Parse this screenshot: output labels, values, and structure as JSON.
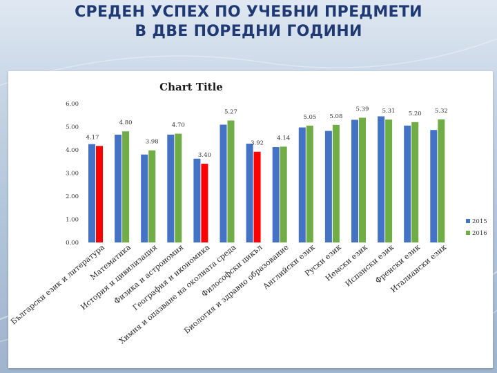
{
  "slide": {
    "title_line1": "СРЕДЕН УСПЕХ ПО УЧЕБНИ ПРЕДМЕТИ",
    "title_line2": "В ДВЕ ПОРЕДНИ ГОДИНИ"
  },
  "colors": {
    "series_2015": "#4472c4",
    "series_2016": "#70ad47",
    "highlight": "#ff0000",
    "title": "#1f3a73"
  },
  "chart_data": {
    "type": "bar",
    "title": "Chart Title",
    "xlabel": "",
    "ylabel": "",
    "ylim": [
      0,
      6
    ],
    "yticks": [
      "0.00",
      "1.00",
      "2.00",
      "3.00",
      "4.00",
      "5.00",
      "6.00"
    ],
    "grid": false,
    "legend_position": "right",
    "categories": [
      "Български език и литература",
      "Математика",
      "История и цивилизация",
      "Физика и астрономия",
      "География и икономика",
      "Химия и опазване на околната среда",
      "Философски цикъл",
      "Биология и здравно образование",
      "Английски език",
      "Руски език",
      "Немски език",
      "Испански език",
      "Френски език",
      "Италиански език"
    ],
    "series": [
      {
        "name": "2015",
        "values": [
          4.25,
          4.66,
          3.8,
          4.66,
          3.62,
          5.09,
          4.27,
          4.12,
          4.97,
          4.82,
          5.3,
          5.45,
          5.05,
          4.86
        ]
      },
      {
        "name": "2016",
        "values": [
          4.17,
          4.8,
          3.98,
          4.7,
          3.4,
          5.27,
          3.92,
          4.14,
          5.05,
          5.08,
          5.39,
          5.31,
          5.2,
          5.32
        ]
      }
    ],
    "data_labels": [
      "4.17",
      "4.80",
      "3.98",
      "4.70",
      "3.40",
      "5.27",
      "3.92",
      "4.14",
      "5.05",
      "5.08",
      "5.39",
      "5.31",
      "5.20",
      "5.32"
    ],
    "highlighted_2016": [
      0,
      4,
      6
    ]
  }
}
